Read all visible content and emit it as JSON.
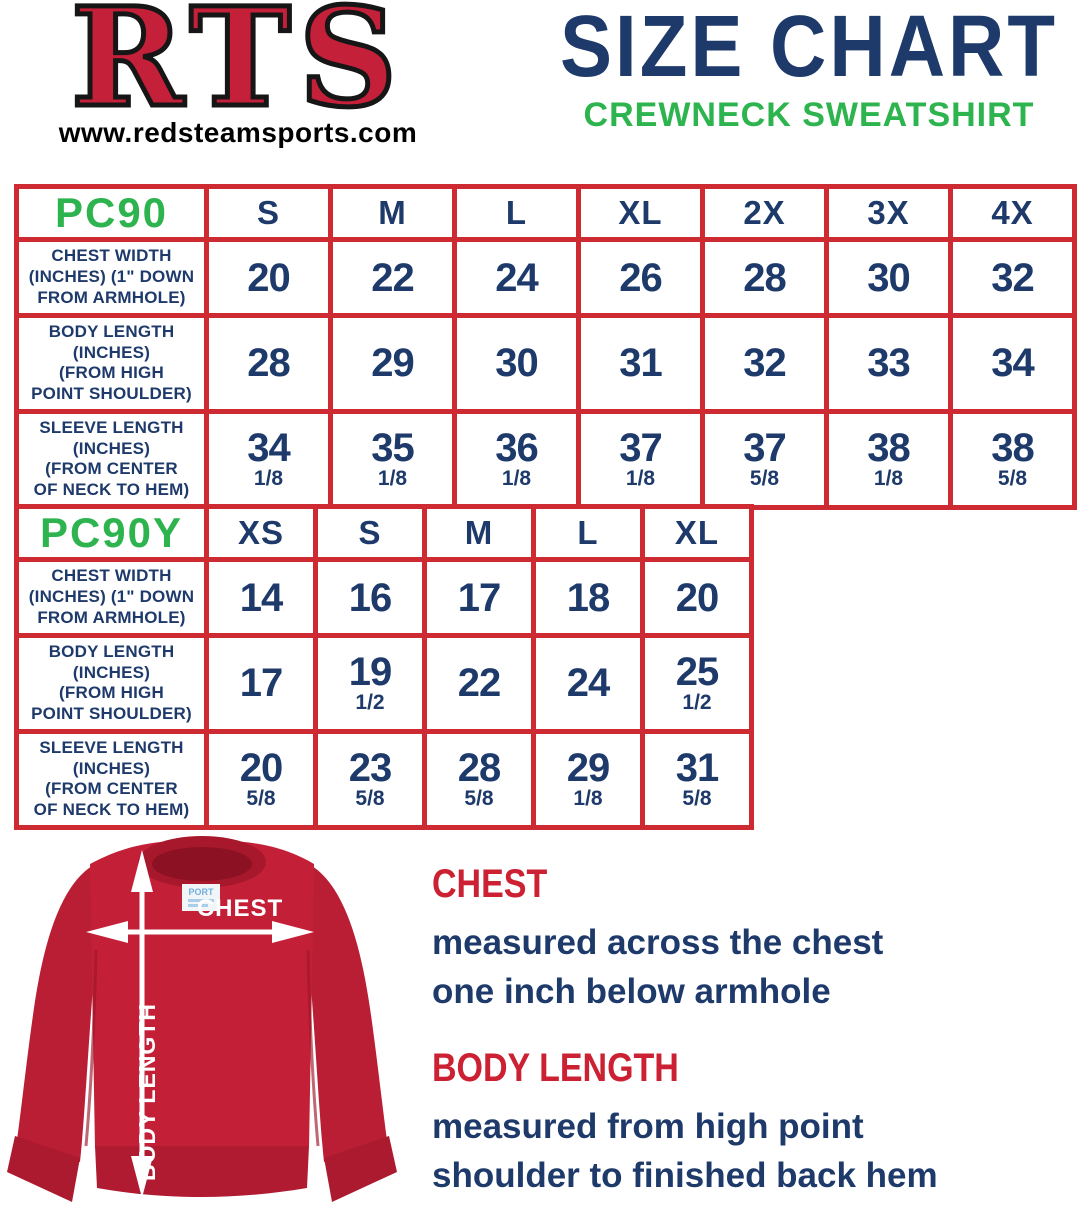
{
  "header": {
    "logo_text": "RTS",
    "website": "www.redsteamsports.com",
    "title": "SIZE CHART",
    "subtitle": "CREWNECK SWEATSHIRT"
  },
  "colors": {
    "navy": "#1e3a6b",
    "green": "#2eb44e",
    "table_border_red": "#cd2a31",
    "heading_red": "#cb2132",
    "logo_red": "#c5203a",
    "sweatshirt_red": "#c32038"
  },
  "tables": [
    {
      "id": "pc90",
      "label": "PC90",
      "columns": [
        "S",
        "M",
        "L",
        "XL",
        "2X",
        "3X",
        "4X"
      ],
      "rows": [
        {
          "label_lines": [
            "CHEST WIDTH",
            "(INCHES) (1\" DOWN",
            "FROM ARMHOLE)"
          ],
          "values": [
            {
              "main": "20"
            },
            {
              "main": "22"
            },
            {
              "main": "24"
            },
            {
              "main": "26"
            },
            {
              "main": "28"
            },
            {
              "main": "30"
            },
            {
              "main": "32"
            }
          ]
        },
        {
          "label_lines": [
            "BODY LENGTH",
            "(INCHES)",
            "(FROM HIGH",
            "POINT SHOULDER)"
          ],
          "values": [
            {
              "main": "28"
            },
            {
              "main": "29"
            },
            {
              "main": "30"
            },
            {
              "main": "31"
            },
            {
              "main": "32"
            },
            {
              "main": "33"
            },
            {
              "main": "34"
            }
          ]
        },
        {
          "label_lines": [
            "SLEEVE LENGTH",
            "(INCHES)",
            "(FROM CENTER",
            "OF NECK TO HEM)"
          ],
          "values": [
            {
              "main": "34",
              "frac": "1/8"
            },
            {
              "main": "35",
              "frac": "1/8"
            },
            {
              "main": "36",
              "frac": "1/8"
            },
            {
              "main": "37",
              "frac": "1/8"
            },
            {
              "main": "37",
              "frac": "5/8"
            },
            {
              "main": "38",
              "frac": "1/8"
            },
            {
              "main": "38",
              "frac": "5/8"
            }
          ]
        }
      ]
    },
    {
      "id": "pc90y",
      "label": "PC90Y",
      "columns": [
        "XS",
        "S",
        "M",
        "L",
        "XL"
      ],
      "rows": [
        {
          "label_lines": [
            "CHEST WIDTH",
            "(INCHES) (1\" DOWN",
            "FROM ARMHOLE)"
          ],
          "values": [
            {
              "main": "14"
            },
            {
              "main": "16"
            },
            {
              "main": "17"
            },
            {
              "main": "18"
            },
            {
              "main": "20"
            }
          ]
        },
        {
          "label_lines": [
            "BODY LENGTH",
            "(INCHES)",
            "(FROM HIGH",
            "POINT SHOULDER)"
          ],
          "values": [
            {
              "main": "17"
            },
            {
              "main": "19",
              "frac": "1/2"
            },
            {
              "main": "22"
            },
            {
              "main": "24"
            },
            {
              "main": "25",
              "frac": "1/2"
            }
          ]
        },
        {
          "label_lines": [
            "SLEEVE LENGTH",
            "(INCHES)",
            "(FROM CENTER",
            "OF NECK TO HEM)"
          ],
          "values": [
            {
              "main": "20",
              "frac": "5/8"
            },
            {
              "main": "23",
              "frac": "5/8"
            },
            {
              "main": "28",
              "frac": "5/8"
            },
            {
              "main": "29",
              "frac": "1/8"
            },
            {
              "main": "31",
              "frac": "5/8"
            }
          ]
        }
      ]
    }
  ],
  "diagram": {
    "chest_arrow_label": "CHEST",
    "body_length_arrow_label": "BODY LENGTH",
    "neck_tag_text": "PORT"
  },
  "legend": [
    {
      "heading": "CHEST",
      "lines": [
        "measured across the chest",
        "one inch below armhole"
      ]
    },
    {
      "heading": "BODY LENGTH",
      "lines": [
        "measured from high point",
        "shoulder to finished back hem"
      ]
    }
  ]
}
